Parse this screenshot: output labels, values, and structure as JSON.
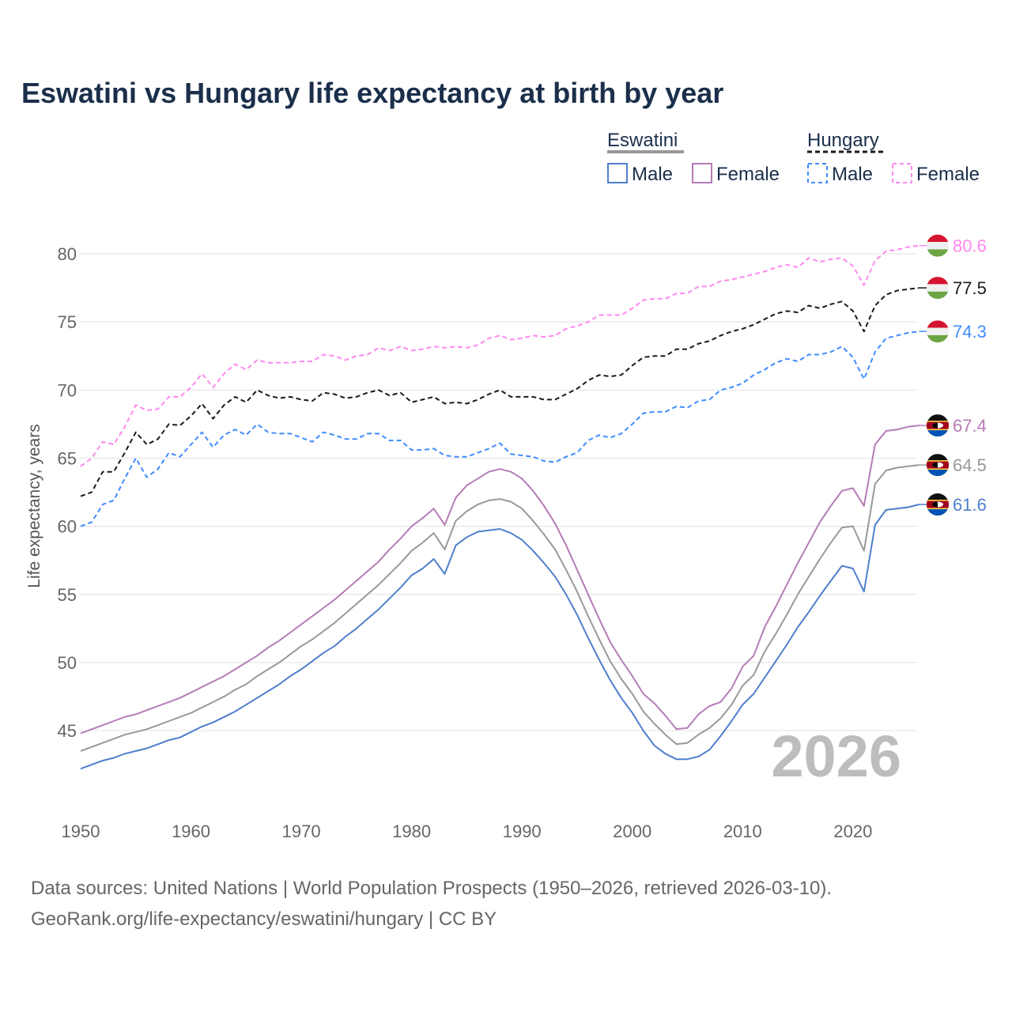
{
  "chart_data": {
    "type": "line",
    "title": "Eswatini vs Hungary life expectancy at birth by year",
    "xlabel": "",
    "ylabel": "Life expectancy, years",
    "xlim": [
      1950,
      2026
    ],
    "ylim": [
      40.5,
      82
    ],
    "x_ticks": [
      1950,
      1960,
      1970,
      1980,
      1990,
      2000,
      2010,
      2020
    ],
    "y_ticks": [
      45,
      50,
      55,
      60,
      65,
      70,
      75,
      80
    ],
    "grid": true,
    "year_watermark": "2026",
    "legend": {
      "placement": "top-right",
      "groups": [
        {
          "name": "Eswatini",
          "color": "#999999",
          "dash": false,
          "items": [
            {
              "label": "Male",
              "color": "#4f7fcc"
            },
            {
              "label": "Female",
              "color": "#b57cb5"
            }
          ]
        },
        {
          "name": "Hungary",
          "color": "#1a1a1a",
          "dash": true,
          "items": [
            {
              "label": "Male",
              "color": "#3f8cff"
            },
            {
              "label": "Female",
              "color": "#ff88ee"
            }
          ]
        }
      ]
    },
    "x_start": 1950,
    "series": [
      {
        "name": "Hungary Female",
        "country": "hungary",
        "color": "#ff88ee",
        "dash": true,
        "end_label": "80.6",
        "values": [
          64.4,
          65.0,
          66.2,
          66.0,
          67.3,
          68.9,
          68.5,
          68.6,
          69.5,
          69.5,
          70.2,
          71.2,
          70.2,
          71.2,
          71.9,
          71.5,
          72.2,
          72.0,
          72.0,
          72.0,
          72.1,
          72.1,
          72.6,
          72.5,
          72.2,
          72.5,
          72.6,
          73.1,
          72.9,
          73.2,
          72.9,
          73.0,
          73.2,
          73.1,
          73.2,
          73.1,
          73.3,
          73.8,
          74.0,
          73.7,
          73.8,
          74.0,
          73.9,
          74.0,
          74.5,
          74.7,
          75.0,
          75.5,
          75.5,
          75.5,
          76.0,
          76.6,
          76.7,
          76.7,
          77.1,
          77.1,
          77.6,
          77.6,
          78.0,
          78.1,
          78.3,
          78.5,
          78.7,
          79.0,
          79.2,
          79.0,
          79.7,
          79.4,
          79.6,
          79.7,
          79.1,
          77.7,
          79.5,
          80.2,
          80.3,
          80.5,
          80.6
        ]
      },
      {
        "name": "Hungary Total",
        "country": "hungary",
        "color": "#1a1a1a",
        "dash": true,
        "end_label": "77.5",
        "values": [
          62.2,
          62.5,
          64.0,
          64.0,
          65.4,
          66.9,
          66.0,
          66.4,
          67.5,
          67.4,
          68.1,
          69.0,
          67.9,
          68.9,
          69.5,
          69.1,
          70.0,
          69.6,
          69.4,
          69.5,
          69.3,
          69.2,
          69.8,
          69.7,
          69.4,
          69.5,
          69.8,
          70.0,
          69.6,
          69.8,
          69.1,
          69.3,
          69.5,
          69.0,
          69.1,
          69.0,
          69.3,
          69.7,
          70.0,
          69.5,
          69.5,
          69.5,
          69.3,
          69.3,
          69.7,
          70.1,
          70.7,
          71.1,
          71.0,
          71.1,
          71.8,
          72.4,
          72.5,
          72.5,
          73.0,
          73.0,
          73.4,
          73.6,
          74.0,
          74.3,
          74.5,
          74.8,
          75.2,
          75.6,
          75.8,
          75.7,
          76.2,
          76.0,
          76.3,
          76.5,
          75.8,
          74.3,
          76.2,
          77.0,
          77.3,
          77.4,
          77.5
        ]
      },
      {
        "name": "Hungary Male",
        "country": "hungary",
        "color": "#3f8cff",
        "dash": true,
        "end_label": "74.3",
        "values": [
          60.0,
          60.3,
          61.6,
          61.9,
          63.5,
          65.0,
          63.6,
          64.2,
          65.4,
          65.1,
          66.0,
          66.9,
          65.8,
          66.7,
          67.1,
          66.7,
          67.5,
          66.9,
          66.8,
          66.8,
          66.5,
          66.2,
          66.9,
          66.7,
          66.4,
          66.4,
          66.8,
          66.8,
          66.3,
          66.3,
          65.6,
          65.6,
          65.7,
          65.2,
          65.1,
          65.1,
          65.4,
          65.7,
          66.1,
          65.3,
          65.2,
          65.1,
          64.8,
          64.7,
          65.1,
          65.4,
          66.3,
          66.7,
          66.5,
          66.8,
          67.5,
          68.3,
          68.4,
          68.4,
          68.8,
          68.7,
          69.2,
          69.3,
          70.0,
          70.2,
          70.5,
          71.1,
          71.5,
          72.0,
          72.3,
          72.1,
          72.6,
          72.6,
          72.8,
          73.2,
          72.4,
          70.8,
          72.8,
          73.8,
          74.0,
          74.2,
          74.3
        ]
      },
      {
        "name": "Eswatini Female",
        "country": "eswatini",
        "color": "#b57cb5",
        "dash": false,
        "end_label": "67.4",
        "values": [
          44.8,
          45.1,
          45.4,
          45.7,
          46.0,
          46.2,
          46.5,
          46.8,
          47.1,
          47.4,
          47.8,
          48.2,
          48.6,
          49.0,
          49.5,
          50.0,
          50.5,
          51.1,
          51.6,
          52.2,
          52.8,
          53.4,
          54.0,
          54.6,
          55.3,
          56.0,
          56.7,
          57.4,
          58.3,
          59.1,
          60.0,
          60.6,
          61.3,
          60.1,
          62.1,
          63.0,
          63.5,
          64.0,
          64.2,
          64.0,
          63.5,
          62.6,
          61.5,
          60.2,
          58.6,
          56.8,
          55.0,
          53.2,
          51.5,
          50.2,
          49.0,
          47.7,
          47.0,
          46.1,
          45.1,
          45.2,
          46.2,
          46.8,
          47.1,
          48.1,
          49.7,
          50.5,
          52.6,
          54.1,
          55.7,
          57.3,
          58.8,
          60.3,
          61.5,
          62.6,
          62.8,
          61.5,
          66.0,
          67.0,
          67.1,
          67.3,
          67.4
        ]
      },
      {
        "name": "Eswatini Total",
        "country": "eswatini",
        "color": "#999999",
        "dash": false,
        "end_label": "64.5",
        "values": [
          43.5,
          43.8,
          44.1,
          44.4,
          44.7,
          44.9,
          45.1,
          45.4,
          45.7,
          46.0,
          46.3,
          46.7,
          47.1,
          47.5,
          48.0,
          48.4,
          49.0,
          49.5,
          50.0,
          50.6,
          51.2,
          51.7,
          52.3,
          52.9,
          53.6,
          54.3,
          55.0,
          55.7,
          56.5,
          57.3,
          58.2,
          58.8,
          59.5,
          58.3,
          60.4,
          61.1,
          61.6,
          61.9,
          62.0,
          61.8,
          61.3,
          60.4,
          59.4,
          58.3,
          56.8,
          55.2,
          53.4,
          51.7,
          50.1,
          48.8,
          47.7,
          46.4,
          45.5,
          44.7,
          44.0,
          44.1,
          44.7,
          45.2,
          45.9,
          46.9,
          48.3,
          49.1,
          50.8,
          52.1,
          53.5,
          55.0,
          56.3,
          57.6,
          58.8,
          59.9,
          60.0,
          58.2,
          63.1,
          64.1,
          64.3,
          64.4,
          64.5
        ]
      },
      {
        "name": "Eswatini Male",
        "country": "eswatini",
        "color": "#4f7fcc",
        "dash": false,
        "end_label": "61.6",
        "values": [
          42.2,
          42.5,
          42.8,
          43.0,
          43.3,
          43.5,
          43.7,
          44.0,
          44.3,
          44.5,
          44.9,
          45.3,
          45.6,
          46.0,
          46.4,
          46.9,
          47.4,
          47.9,
          48.4,
          49.0,
          49.5,
          50.1,
          50.7,
          51.2,
          51.9,
          52.5,
          53.2,
          53.9,
          54.7,
          55.5,
          56.4,
          56.9,
          57.6,
          56.5,
          58.6,
          59.2,
          59.6,
          59.7,
          59.8,
          59.5,
          59.0,
          58.2,
          57.3,
          56.3,
          55.0,
          53.5,
          51.8,
          50.2,
          48.7,
          47.4,
          46.3,
          45.0,
          43.9,
          43.3,
          42.9,
          42.9,
          43.1,
          43.6,
          44.6,
          45.7,
          46.9,
          47.7,
          48.9,
          50.1,
          51.3,
          52.6,
          53.7,
          54.9,
          56.0,
          57.1,
          56.9,
          55.2,
          60.1,
          61.2,
          61.3,
          61.4,
          61.6
        ]
      }
    ]
  },
  "footer": {
    "line1": "Data sources: United Nations | World Population Prospects (1950–2026, retrieved 2026-03-10).",
    "line2": "GeoRank.org/life-expectancy/eswatini/hungary | CC BY"
  }
}
